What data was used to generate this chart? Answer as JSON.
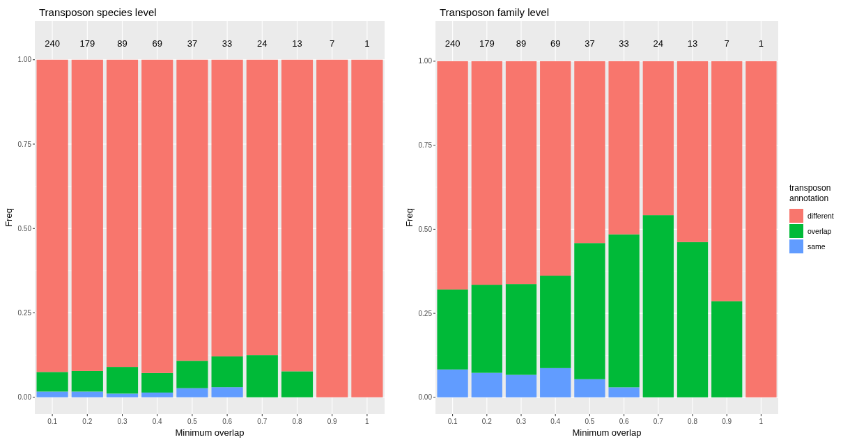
{
  "chart_data": [
    {
      "type": "bar",
      "title": "Transposon species level",
      "xlabel": "Minimum overlap",
      "ylabel": "Freq",
      "stacked": true,
      "categories": [
        "0.1",
        "0.2",
        "0.3",
        "0.4",
        "0.5",
        "0.6",
        "0.7",
        "0.8",
        "0.9",
        "1"
      ],
      "series": [
        {
          "color": "#619cff",
          "values": [
            0.017,
            0.017,
            0.011,
            0.014,
            0.027,
            0.03,
            0,
            0,
            0,
            0
          ]
        },
        {
          "color": "#00ba38",
          "values": [
            0.058,
            0.061,
            0.079,
            0.058,
            0.081,
            0.091,
            0.125,
            0.077,
            0,
            0
          ]
        },
        {
          "color": "#f8766d",
          "values": [
            0.925,
            0.922,
            0.91,
            0.928,
            0.892,
            0.879,
            0.875,
            0.923,
            1,
            1
          ]
        }
      ],
      "annotations": [
        "240",
        "179",
        "89",
        "69",
        "37",
        "33",
        "24",
        "13",
        "7",
        "1"
      ],
      "ylim": [
        -0.05,
        1.115
      ],
      "yticks": [
        {
          "value": 0,
          "label": "0.00"
        },
        {
          "value": 0.25,
          "label": "0.25"
        },
        {
          "value": 0.5,
          "label": "0.50"
        },
        {
          "value": 0.75,
          "label": "0.75"
        },
        {
          "value": 1,
          "label": "1.00"
        }
      ],
      "grid": true
    },
    {
      "type": "bar",
      "title": "Transposon family level",
      "xlabel": "Minimum overlap",
      "ylabel": "Freq",
      "stacked": true,
      "legend_title": "transposon\nannotation",
      "categories": [
        "0.1",
        "0.2",
        "0.3",
        "0.4",
        "0.5",
        "0.6",
        "0.7",
        "0.8",
        "0.9",
        "1"
      ],
      "series": [
        {
          "name": "same",
          "color": "#619cff",
          "values": [
            0.083,
            0.073,
            0.067,
            0.087,
            0.054,
            0.03,
            0,
            0,
            0,
            0
          ]
        },
        {
          "name": "overlap",
          "color": "#00ba38",
          "values": [
            0.238,
            0.262,
            0.27,
            0.275,
            0.405,
            0.455,
            0.542,
            0.462,
            0.286,
            0
          ]
        },
        {
          "name": "different",
          "color": "#f8766d",
          "values": [
            0.679,
            0.665,
            0.663,
            0.638,
            0.541,
            0.515,
            0.458,
            0.538,
            0.714,
            1
          ]
        }
      ],
      "annotations": [
        "240",
        "179",
        "89",
        "69",
        "37",
        "33",
        "24",
        "13",
        "7",
        "1"
      ],
      "ylim": [
        -0.05,
        1.12
      ],
      "yticks": [
        {
          "value": 0,
          "label": "0.00"
        },
        {
          "value": 0.25,
          "label": "0.25"
        },
        {
          "value": 0.5,
          "label": "0.50"
        },
        {
          "value": 0.75,
          "label": "0.75"
        },
        {
          "value": 1,
          "label": "1.00"
        }
      ],
      "grid": true,
      "legend": "right"
    }
  ]
}
